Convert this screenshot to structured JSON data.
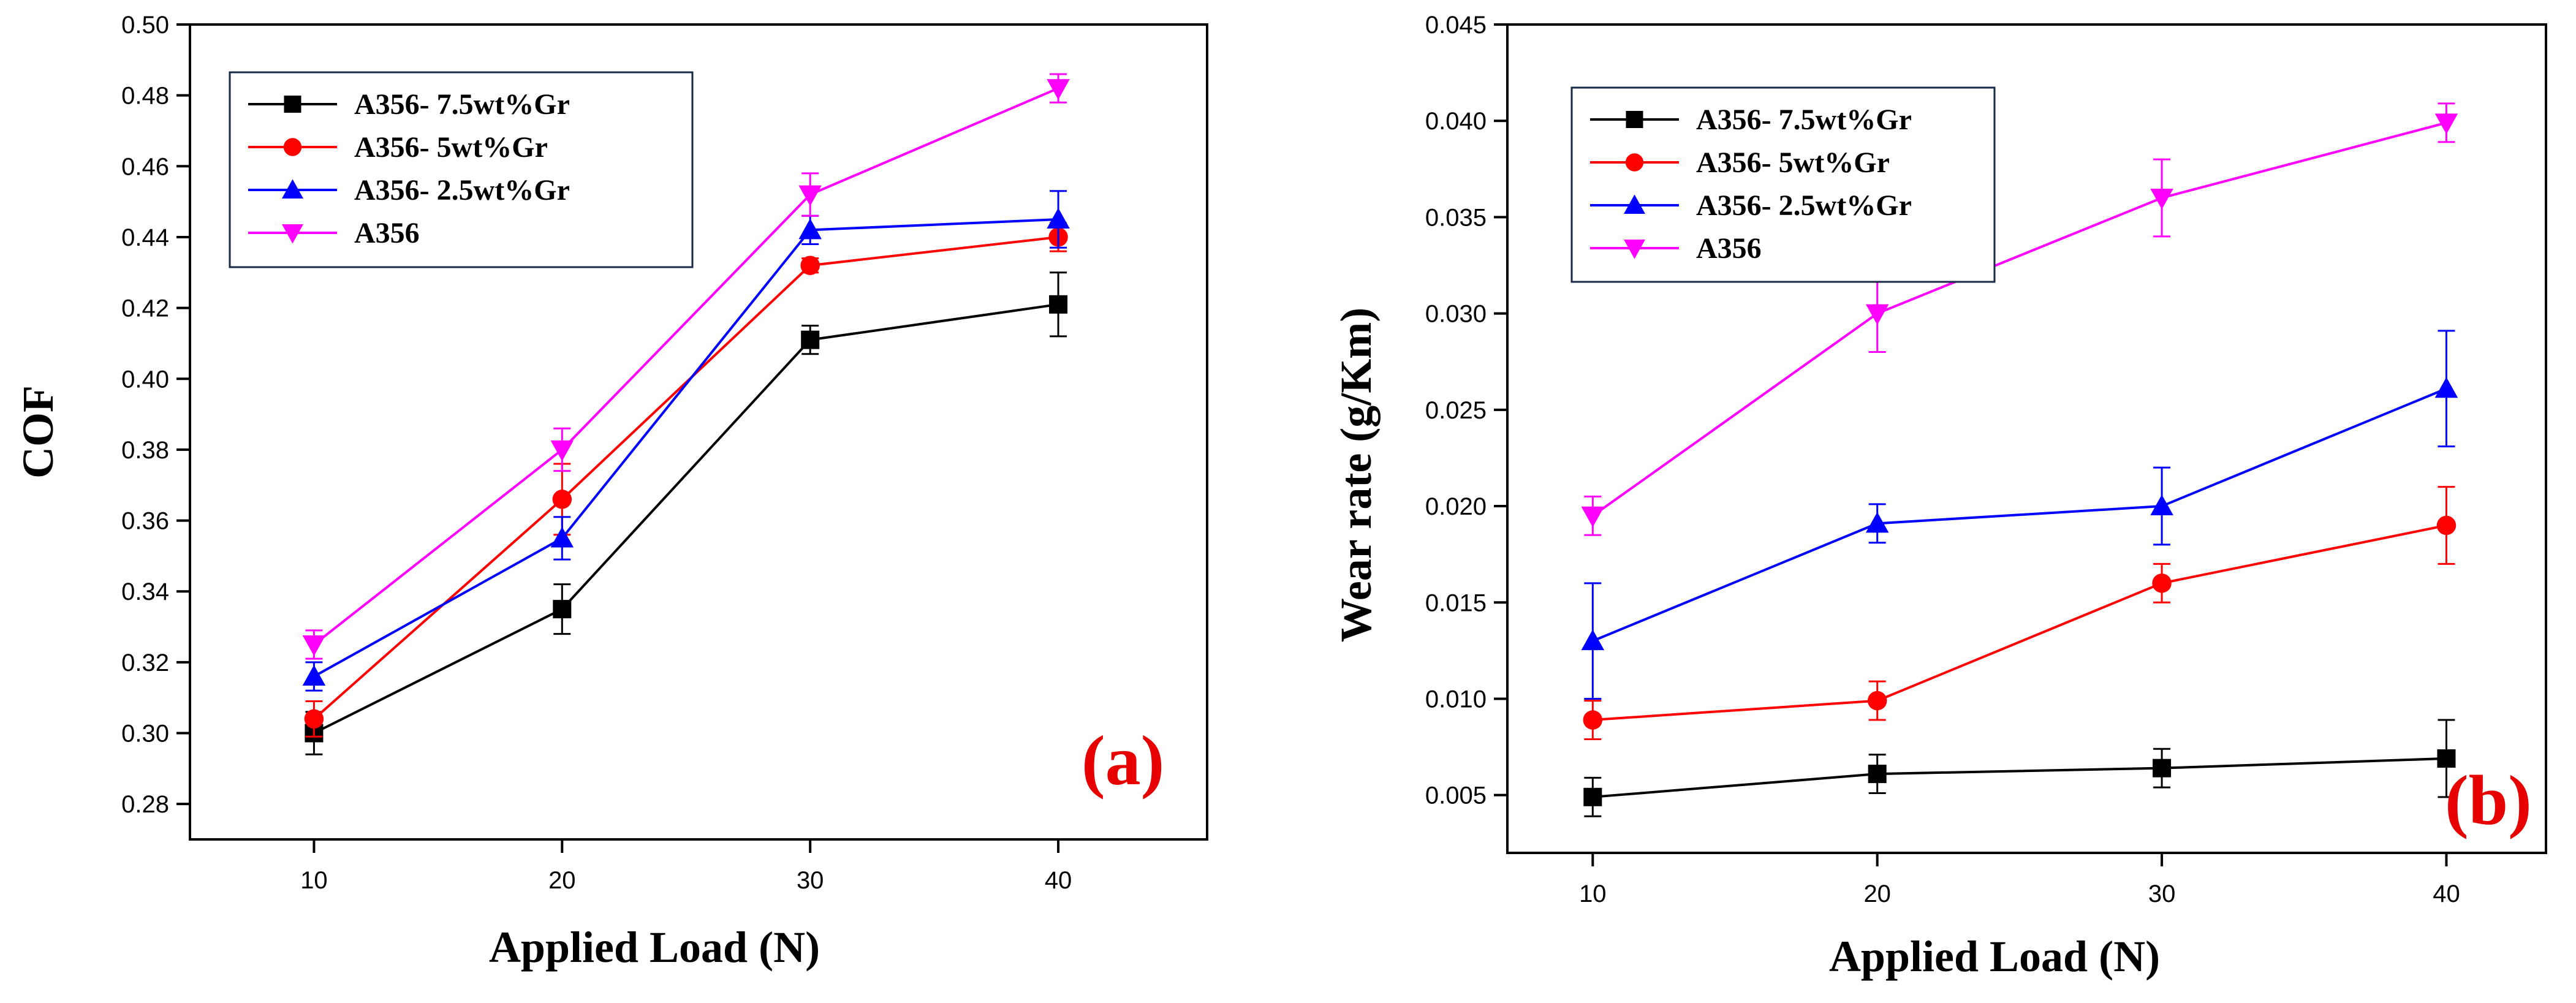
{
  "series_styles": [
    {
      "name": "A356- 7.5wt%Gr",
      "color": "#000000",
      "marker": "square"
    },
    {
      "name": "A356- 5wt%Gr",
      "color": "#ff0000",
      "marker": "circle"
    },
    {
      "name": "A356- 2.5wt%Gr",
      "color": "#0000ff",
      "marker": "triangle-up"
    },
    {
      "name": "A356",
      "color": "#ff00ff",
      "marker": "triangle-down"
    }
  ],
  "chart_data": [
    {
      "type": "line",
      "panel_label": "(a)",
      "xlabel": "Applied Load (N)",
      "ylabel": "COF",
      "x": [
        10,
        20,
        30,
        40
      ],
      "xlim": [
        5,
        46
      ],
      "ylim": [
        0.27,
        0.5
      ],
      "xticks": [
        10,
        20,
        30,
        40
      ],
      "xtick_labels": [
        "10",
        "20",
        "30",
        "40"
      ],
      "yticks": [
        0.28,
        0.3,
        0.32,
        0.34,
        0.36,
        0.38,
        0.4,
        0.42,
        0.44,
        0.46,
        0.48,
        0.5
      ],
      "ytick_labels": [
        "0.28",
        "0.30",
        "0.32",
        "0.34",
        "0.36",
        "0.38",
        "0.40",
        "0.42",
        "0.44",
        "0.46",
        "0.48",
        "0.50"
      ],
      "legend_position": "top-left",
      "series": [
        {
          "name": "A356- 7.5wt%Gr",
          "values": [
            0.3,
            0.335,
            0.411,
            0.421
          ],
          "errors": [
            0.006,
            0.007,
            0.004,
            0.009
          ]
        },
        {
          "name": "A356- 5wt%Gr",
          "values": [
            0.304,
            0.366,
            0.432,
            0.44
          ],
          "errors": [
            0.005,
            0.01,
            0.002,
            0.004
          ]
        },
        {
          "name": "A356- 2.5wt%Gr",
          "values": [
            0.316,
            0.355,
            0.442,
            0.445
          ],
          "errors": [
            0.004,
            0.006,
            0.004,
            0.008
          ]
        },
        {
          "name": "A356",
          "values": [
            0.325,
            0.38,
            0.452,
            0.482
          ],
          "errors": [
            0.004,
            0.006,
            0.006,
            0.004
          ]
        }
      ]
    },
    {
      "type": "line",
      "panel_label": "(b)",
      "xlabel": "Applied Load (N)",
      "ylabel": "Wear rate (g/Km)",
      "x": [
        10,
        20,
        30,
        40
      ],
      "xlim": [
        7,
        43.5
      ],
      "ylim": [
        0.002,
        0.045
      ],
      "xticks": [
        10,
        20,
        30,
        40
      ],
      "xtick_labels": [
        "10",
        "20",
        "30",
        "40"
      ],
      "yticks": [
        0.005,
        0.01,
        0.015,
        0.02,
        0.025,
        0.03,
        0.035,
        0.04,
        0.045
      ],
      "ytick_labels": [
        "0.005",
        "0.010",
        "0.015",
        "0.020",
        "0.025",
        "0.030",
        "0.035",
        "0.040",
        "0.045"
      ],
      "legend_position": "top-left",
      "series": [
        {
          "name": "A356- 7.5wt%Gr",
          "values": [
            0.0049,
            0.0061,
            0.0064,
            0.0069
          ],
          "errors": [
            0.001,
            0.001,
            0.001,
            0.002
          ]
        },
        {
          "name": "A356- 5wt%Gr",
          "values": [
            0.0089,
            0.0099,
            0.016,
            0.019
          ],
          "errors": [
            0.001,
            0.001,
            0.001,
            0.002
          ]
        },
        {
          "name": "A356- 2.5wt%Gr",
          "values": [
            0.013,
            0.0191,
            0.02,
            0.0261
          ],
          "errors": [
            0.003,
            0.001,
            0.002,
            0.003
          ]
        },
        {
          "name": "A356",
          "values": [
            0.0195,
            0.03,
            0.036,
            0.0399
          ],
          "errors": [
            0.001,
            0.002,
            0.002,
            0.001
          ]
        }
      ]
    }
  ]
}
